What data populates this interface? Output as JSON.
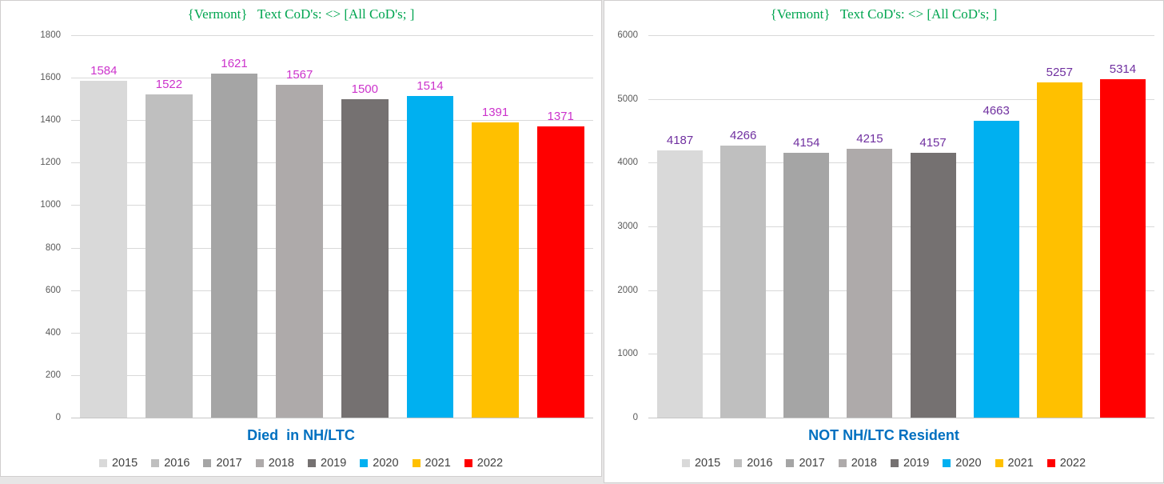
{
  "page": {
    "background_color": "#E7E6E6",
    "panel_border_color": "#D0CECE",
    "gridline_color": "#D9D9D9"
  },
  "chart_data": [
    {
      "type": "bar",
      "title": "{Vermont}   Text CoD's: <> [All CoD's; ]",
      "title_color": "#00A550",
      "xlabel": "Died  in NH/LTC",
      "xlabel_color": "#0070C0",
      "categories": [
        "2015",
        "2016",
        "2017",
        "2018",
        "2019",
        "2020",
        "2021",
        "2022"
      ],
      "values": [
        1584,
        1522,
        1621,
        1567,
        1500,
        1514,
        1391,
        1371
      ],
      "bar_colors": [
        "#D9D9D9",
        "#BFBFBF",
        "#A5A5A5",
        "#AEAAAA",
        "#757171",
        "#00B0F0",
        "#FFC000",
        "#FF0000"
      ],
      "data_label_color": "#CC33CC",
      "ylim": [
        0,
        1800
      ],
      "ytick_step": 200,
      "ytick_labels": [
        "0",
        "200",
        "400",
        "600",
        "800",
        "1000",
        "1200",
        "1400",
        "1600",
        "1800"
      ],
      "grid": true,
      "legend_position": "bottom",
      "legend": [
        "2015",
        "2016",
        "2017",
        "2018",
        "2019",
        "2020",
        "2021",
        "2022"
      ]
    },
    {
      "type": "bar",
      "title": "{Vermont}   Text CoD's: <> [All CoD's; ]",
      "title_color": "#00A550",
      "xlabel": "NOT NH/LTC Resident",
      "xlabel_color": "#0070C0",
      "categories": [
        "2015",
        "2016",
        "2017",
        "2018",
        "2019",
        "2020",
        "2021",
        "2022"
      ],
      "values": [
        4187,
        4266,
        4154,
        4215,
        4157,
        4663,
        5257,
        5314
      ],
      "bar_colors": [
        "#D9D9D9",
        "#BFBFBF",
        "#A5A5A5",
        "#AEAAAA",
        "#757171",
        "#00B0F0",
        "#FFC000",
        "#FF0000"
      ],
      "data_label_color": "#7030A0",
      "ylim": [
        0,
        6000
      ],
      "ytick_step": 1000,
      "ytick_labels": [
        "0",
        "1000",
        "2000",
        "3000",
        "4000",
        "5000",
        "6000"
      ],
      "grid": true,
      "legend_position": "bottom",
      "legend": [
        "2015",
        "2016",
        "2017",
        "2018",
        "2019",
        "2020",
        "2021",
        "2022"
      ]
    }
  ]
}
